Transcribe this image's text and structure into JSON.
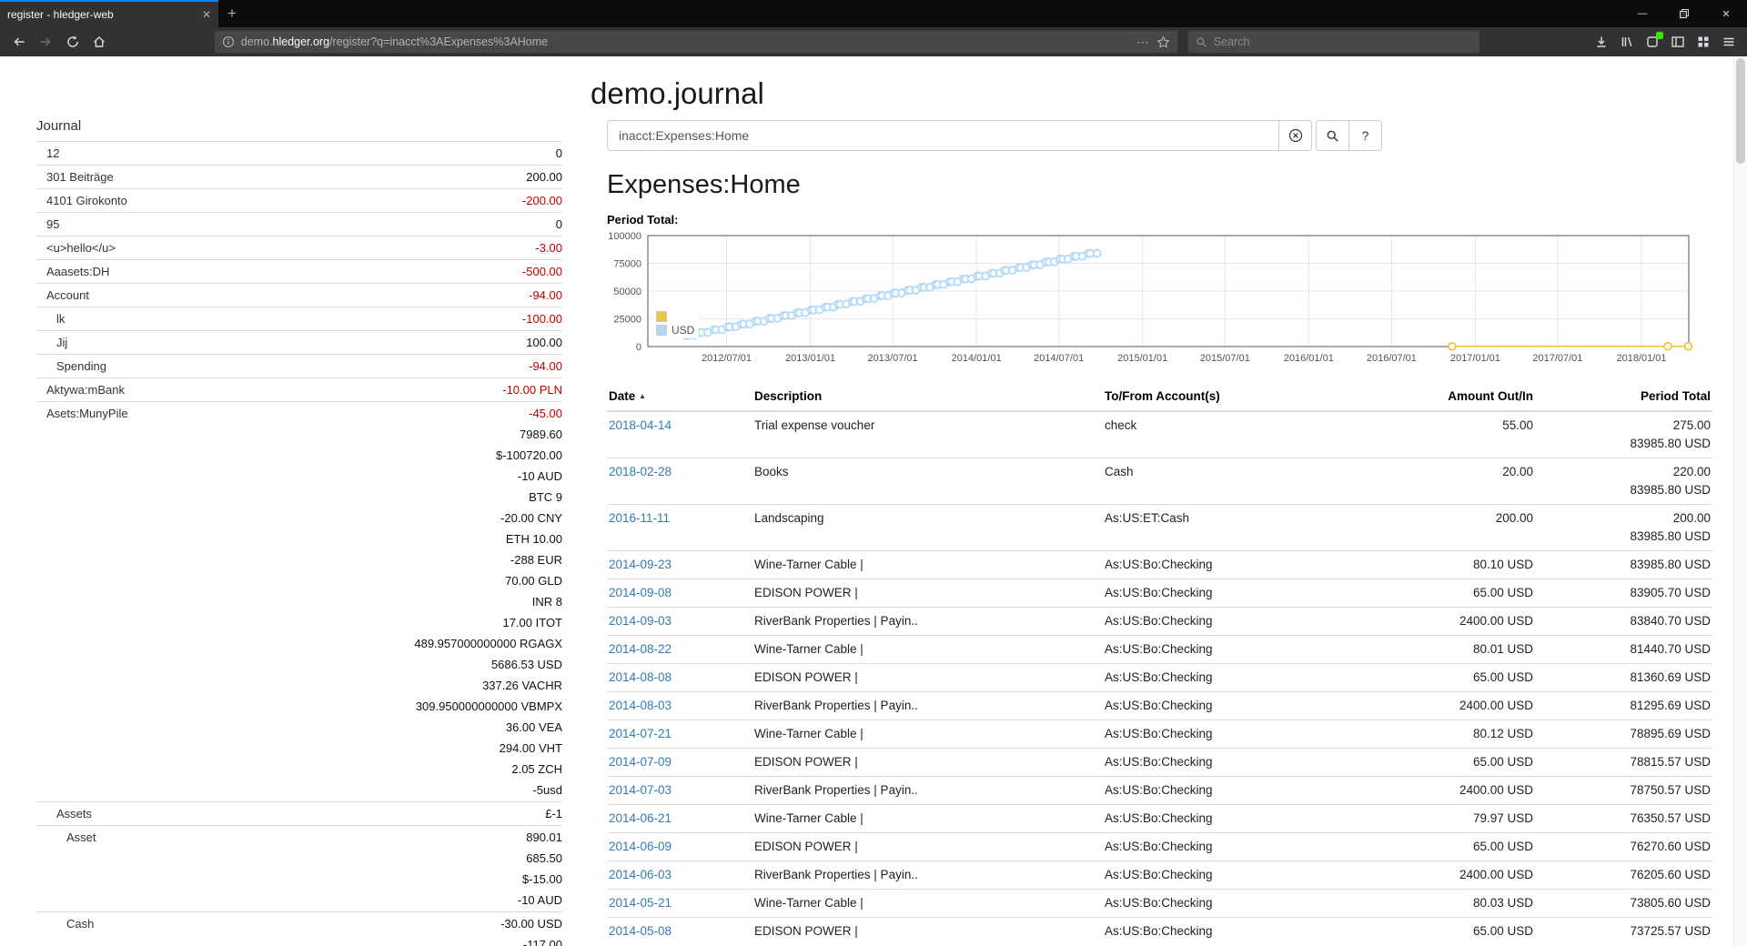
{
  "browser": {
    "tab_title": "register - hledger-web",
    "glyphs": {
      "tab_close": "✕",
      "new_tab": "+",
      "overflow_dots": "⋯",
      "window_minimize": "—",
      "window_close": "✕"
    },
    "url": {
      "subdomain": "demo.",
      "domain": "hledger.org",
      "path": "/register?q=inacct%3AExpenses%3AHome"
    },
    "search_placeholder": "Search"
  },
  "page": {
    "title": "demo.journal",
    "sidebar": {
      "heading": "Journal",
      "rows": [
        {
          "name": "12",
          "indent": 1,
          "amounts": [
            {
              "text": "0"
            }
          ]
        },
        {
          "name": "301 Beiträge",
          "indent": 1,
          "amounts": [
            {
              "text": "200.00"
            }
          ]
        },
        {
          "name": "4101 Girokonto",
          "indent": 1,
          "amounts": [
            {
              "text": "-200.00",
              "neg": true
            }
          ]
        },
        {
          "name": "95",
          "indent": 1,
          "amounts": [
            {
              "text": "0"
            }
          ]
        },
        {
          "name": "<u>hello</u>",
          "indent": 1,
          "amounts": [
            {
              "text": "-3.00",
              "neg": true
            }
          ]
        },
        {
          "name": "Aaasets:DH",
          "indent": 1,
          "amounts": [
            {
              "text": "-500.00",
              "neg": true
            }
          ]
        },
        {
          "name": "Account",
          "indent": 1,
          "amounts": [
            {
              "text": "-94.00",
              "neg": true
            }
          ]
        },
        {
          "name": "lk",
          "indent": 2,
          "amounts": [
            {
              "text": "-100.00",
              "neg": true
            }
          ]
        },
        {
          "name": "Jij",
          "indent": 2,
          "amounts": [
            {
              "text": "100.00"
            }
          ]
        },
        {
          "name": "Spending",
          "indent": 2,
          "amounts": [
            {
              "text": "-94.00",
              "neg": true
            }
          ]
        },
        {
          "name": "Aktywa:mBank",
          "indent": 1,
          "amounts": [
            {
              "text": "-10.00 PLN",
              "neg": true
            }
          ]
        },
        {
          "name": "Asets:MunyPile",
          "indent": 1,
          "amounts": [
            {
              "text": "-45.00",
              "neg": true
            },
            {
              "text": "7989.60"
            },
            {
              "text": "$-100720.00"
            },
            {
              "text": "-10 AUD"
            },
            {
              "text": "BTC 9"
            },
            {
              "text": "-20.00 CNY"
            },
            {
              "text": "ETH 10.00"
            },
            {
              "text": "-288 EUR"
            },
            {
              "text": "70.00 GLD"
            },
            {
              "text": "INR 8"
            },
            {
              "text": "17.00 ITOT"
            },
            {
              "text": "489.957000000000 RGAGX"
            },
            {
              "text": "5686.53 USD"
            },
            {
              "text": "337.26 VACHR"
            },
            {
              "text": "309.950000000000 VBMPX"
            },
            {
              "text": "36.00 VEA"
            },
            {
              "text": "294.00 VHT"
            },
            {
              "text": "2.05 ZCH"
            },
            {
              "text": "-5usd"
            }
          ]
        },
        {
          "name": "Assets",
          "indent": 2,
          "amounts": [
            {
              "text": "£-1"
            }
          ]
        },
        {
          "name": "Asset",
          "indent": 3,
          "amounts": [
            {
              "text": "890.01"
            },
            {
              "text": "685.50"
            },
            {
              "text": "$-15.00"
            },
            {
              "text": "-10 AUD"
            }
          ]
        },
        {
          "name": "Cash",
          "indent": 3,
          "amounts": [
            {
              "text": "-30.00 USD"
            },
            {
              "text": "-117.00"
            }
          ]
        }
      ]
    },
    "query": {
      "value": "inacct:Expenses:Home",
      "help": "?"
    },
    "register": {
      "heading": "Expenses:Home",
      "period_label": "Period Total:",
      "sort_caret": "▲",
      "columns": [
        "Date",
        "Description",
        "To/From Account(s)",
        "Amount Out/In",
        "Period Total"
      ],
      "rows": [
        {
          "date": "2018-04-14",
          "description": "Trial expense voucher",
          "account": "check",
          "amount": "55.00",
          "total": [
            "275.00",
            "83985.80 USD"
          ]
        },
        {
          "date": "2018-02-28",
          "description": "Books",
          "account": "Cash",
          "amount": "20.00",
          "total": [
            "220.00",
            "83985.80 USD"
          ]
        },
        {
          "date": "2016-11-11",
          "description": "Landscaping",
          "account": "As:US:ET:Cash",
          "amount": "200.00",
          "total": [
            "200.00",
            "83985.80 USD"
          ]
        },
        {
          "date": "2014-09-23",
          "description": "Wine-Tarner Cable |",
          "account": "As:US:Bo:Checking",
          "amount": "80.10 USD",
          "total": [
            "83985.80 USD"
          ]
        },
        {
          "date": "2014-09-08",
          "description": "EDISON POWER |",
          "account": "As:US:Bo:Checking",
          "amount": "65.00 USD",
          "total": [
            "83905.70 USD"
          ]
        },
        {
          "date": "2014-09-03",
          "description": "RiverBank Properties | Payin..",
          "account": "As:US:Bo:Checking",
          "amount": "2400.00 USD",
          "total": [
            "83840.70 USD"
          ]
        },
        {
          "date": "2014-08-22",
          "description": "Wine-Tarner Cable |",
          "account": "As:US:Bo:Checking",
          "amount": "80.01 USD",
          "total": [
            "81440.70 USD"
          ]
        },
        {
          "date": "2014-08-08",
          "description": "EDISON POWER |",
          "account": "As:US:Bo:Checking",
          "amount": "65.00 USD",
          "total": [
            "81360.69 USD"
          ]
        },
        {
          "date": "2014-08-03",
          "description": "RiverBank Properties | Payin..",
          "account": "As:US:Bo:Checking",
          "amount": "2400.00 USD",
          "total": [
            "81295.69 USD"
          ]
        },
        {
          "date": "2014-07-21",
          "description": "Wine-Tarner Cable |",
          "account": "As:US:Bo:Checking",
          "amount": "80.12 USD",
          "total": [
            "78895.69 USD"
          ]
        },
        {
          "date": "2014-07-09",
          "description": "EDISON POWER |",
          "account": "As:US:Bo:Checking",
          "amount": "65.00 USD",
          "total": [
            "78815.57 USD"
          ]
        },
        {
          "date": "2014-07-03",
          "description": "RiverBank Properties | Payin..",
          "account": "As:US:Bo:Checking",
          "amount": "2400.00 USD",
          "total": [
            "78750.57 USD"
          ]
        },
        {
          "date": "2014-06-21",
          "description": "Wine-Tarner Cable |",
          "account": "As:US:Bo:Checking",
          "amount": "79.97 USD",
          "total": [
            "76350.57 USD"
          ]
        },
        {
          "date": "2014-06-09",
          "description": "EDISON POWER |",
          "account": "As:US:Bo:Checking",
          "amount": "65.00 USD",
          "total": [
            "76270.60 USD"
          ]
        },
        {
          "date": "2014-06-03",
          "description": "RiverBank Properties | Payin..",
          "account": "As:US:Bo:Checking",
          "amount": "2400.00 USD",
          "total": [
            "76205.60 USD"
          ]
        },
        {
          "date": "2014-05-21",
          "description": "Wine-Tarner Cable |",
          "account": "As:US:Bo:Checking",
          "amount": "80.03 USD",
          "total": [
            "73805.60 USD"
          ]
        },
        {
          "date": "2014-05-08",
          "description": "EDISON POWER |",
          "account": "As:US:Bo:Checking",
          "amount": "65.00 USD",
          "total": [
            "73725.57 USD"
          ]
        }
      ]
    }
  },
  "chart_data": {
    "type": "scatter",
    "title": "Period Total:",
    "xlabel": "",
    "ylabel": "",
    "ylim": [
      0,
      100000
    ],
    "yticks": [
      0,
      25000,
      50000,
      75000,
      100000
    ],
    "xticks": [
      "2012/07/01",
      "2013/01/01",
      "2013/07/01",
      "2014/01/01",
      "2014/07/01",
      "2015/01/01",
      "2015/07/01",
      "2016/01/01",
      "2016/07/01",
      "2017/01/01",
      "2017/07/01",
      "2018/01/01"
    ],
    "x_domain": [
      "2012-01-10",
      "2018-04-15"
    ],
    "grid": true,
    "legend_position": "inside-left",
    "series": [
      {
        "name": "",
        "color": "#edc240",
        "line": true,
        "points": [
          [
            "2016-11-11",
            200
          ],
          [
            "2018-02-28",
            220
          ],
          [
            "2018-04-14",
            275
          ]
        ]
      },
      {
        "name": "USD",
        "color": "#afd8f8",
        "line": false,
        "points": [
          [
            "2012-04-03",
            10035.57
          ],
          [
            "2012-04-08",
            10100.57
          ],
          [
            "2012-04-21",
            10180.57
          ],
          [
            "2012-05-03",
            12580.57
          ],
          [
            "2012-05-08",
            12645.57
          ],
          [
            "2012-05-21",
            12725.57
          ],
          [
            "2012-06-03",
            15125.57
          ],
          [
            "2012-06-08",
            15190.57
          ],
          [
            "2012-06-21",
            15270.57
          ],
          [
            "2012-07-03",
            17670.57
          ],
          [
            "2012-07-08",
            17735.57
          ],
          [
            "2012-07-21",
            17815.57
          ],
          [
            "2012-08-03",
            20215.57
          ],
          [
            "2012-08-08",
            20280.57
          ],
          [
            "2012-08-21",
            20360.57
          ],
          [
            "2012-09-03",
            22760.57
          ],
          [
            "2012-09-08",
            22825.57
          ],
          [
            "2012-09-21",
            22905.57
          ],
          [
            "2012-10-03",
            25305.57
          ],
          [
            "2012-10-08",
            25370.57
          ],
          [
            "2012-10-21",
            25450.57
          ],
          [
            "2012-11-03",
            27850.57
          ],
          [
            "2012-11-08",
            27915.57
          ],
          [
            "2012-11-21",
            27995.57
          ],
          [
            "2012-12-03",
            30395.57
          ],
          [
            "2012-12-08",
            30460.57
          ],
          [
            "2012-12-21",
            30540.57
          ],
          [
            "2013-01-03",
            32940.57
          ],
          [
            "2013-01-08",
            33005.57
          ],
          [
            "2013-01-21",
            33085.57
          ],
          [
            "2013-02-03",
            35485.57
          ],
          [
            "2013-02-08",
            35550.57
          ],
          [
            "2013-02-21",
            35630.57
          ],
          [
            "2013-03-03",
            38030.57
          ],
          [
            "2013-03-08",
            38095.57
          ],
          [
            "2013-03-21",
            38175.57
          ],
          [
            "2013-04-03",
            40575.57
          ],
          [
            "2013-04-08",
            40640.57
          ],
          [
            "2013-04-21",
            40720.57
          ],
          [
            "2013-05-03",
            43120.57
          ],
          [
            "2013-05-08",
            43185.57
          ],
          [
            "2013-05-21",
            43265.57
          ],
          [
            "2013-06-03",
            45665.57
          ],
          [
            "2013-06-08",
            45730.57
          ],
          [
            "2013-06-21",
            45810.57
          ],
          [
            "2013-07-03",
            48210.57
          ],
          [
            "2013-07-08",
            48275.57
          ],
          [
            "2013-07-21",
            48355.57
          ],
          [
            "2013-08-03",
            50755.57
          ],
          [
            "2013-08-08",
            50820.57
          ],
          [
            "2013-08-21",
            50900.57
          ],
          [
            "2013-09-03",
            53300.57
          ],
          [
            "2013-09-08",
            53365.57
          ],
          [
            "2013-09-21",
            53445.57
          ],
          [
            "2013-10-03",
            55845.57
          ],
          [
            "2013-10-08",
            55910.57
          ],
          [
            "2013-10-21",
            55990.57
          ],
          [
            "2013-11-03",
            58390.57
          ],
          [
            "2013-11-08",
            58455.57
          ],
          [
            "2013-11-21",
            58535.57
          ],
          [
            "2013-12-03",
            60935.57
          ],
          [
            "2013-12-08",
            61000.57
          ],
          [
            "2013-12-21",
            61080.57
          ],
          [
            "2014-01-03",
            63480.57
          ],
          [
            "2014-01-08",
            63545.57
          ],
          [
            "2014-01-21",
            63625.57
          ],
          [
            "2014-02-03",
            66025.57
          ],
          [
            "2014-02-08",
            66090.57
          ],
          [
            "2014-02-21",
            66170.57
          ],
          [
            "2014-03-03",
            68570.57
          ],
          [
            "2014-03-08",
            68635.57
          ],
          [
            "2014-03-21",
            68715.57
          ],
          [
            "2014-04-03",
            71115.57
          ],
          [
            "2014-04-08",
            71180.57
          ],
          [
            "2014-04-21",
            71260.57
          ],
          [
            "2014-05-03",
            73660.57
          ],
          [
            "2014-05-08",
            73725.57
          ],
          [
            "2014-05-21",
            73805.6
          ],
          [
            "2014-06-03",
            76205.6
          ],
          [
            "2014-06-09",
            76270.6
          ],
          [
            "2014-06-21",
            76350.57
          ],
          [
            "2014-07-03",
            78750.57
          ],
          [
            "2014-07-09",
            78815.57
          ],
          [
            "2014-07-21",
            78895.69
          ],
          [
            "2014-08-03",
            81295.69
          ],
          [
            "2014-08-08",
            81360.69
          ],
          [
            "2014-08-22",
            81440.7
          ],
          [
            "2014-09-03",
            83840.7
          ],
          [
            "2014-09-08",
            83905.7
          ],
          [
            "2014-09-23",
            83985.8
          ]
        ]
      }
    ]
  }
}
